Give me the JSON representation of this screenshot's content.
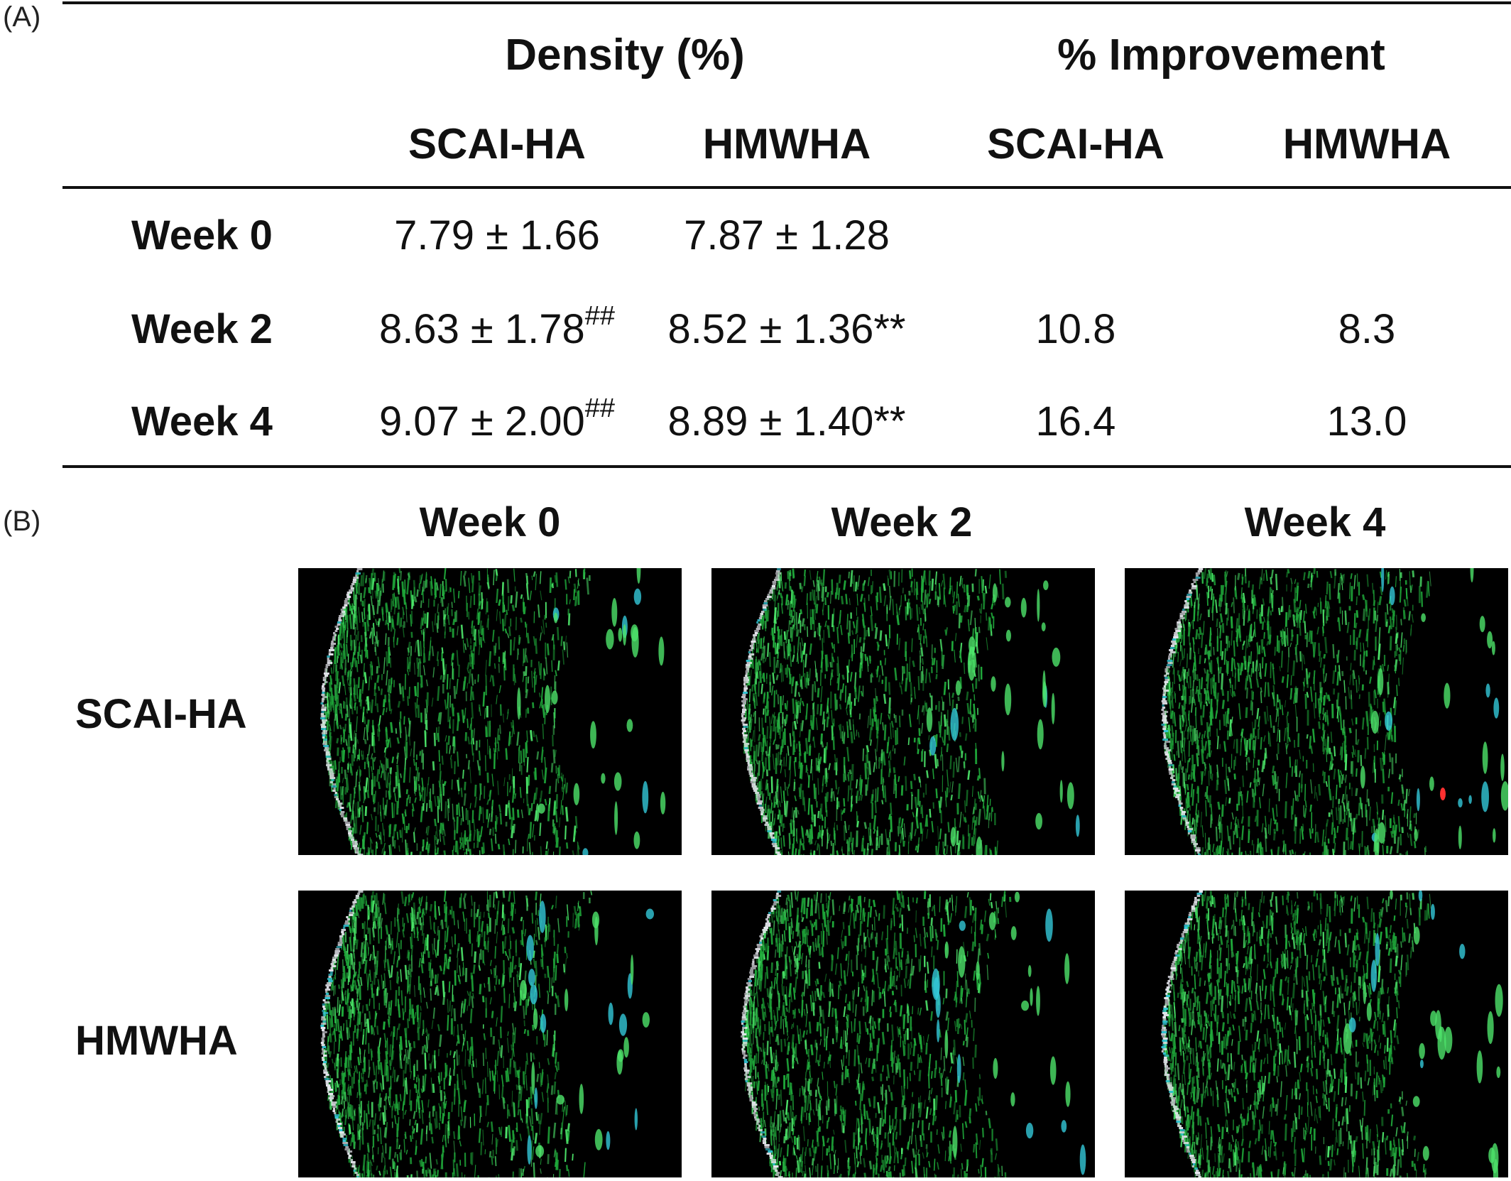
{
  "panel_a": {
    "label": "(A)",
    "group_headers": [
      "Density (%)",
      "% Improvement"
    ],
    "sub_headers": [
      "SCAI-HA",
      "HMWHA",
      "SCAI-HA",
      "HMWHA"
    ],
    "rows": [
      {
        "label": "Week 0",
        "scai_density": "7.79 ± 1.66",
        "scai_sup": "",
        "hmwha_density": "7.87 ± 1.28",
        "scai_impr": "",
        "hmwha_impr": ""
      },
      {
        "label": "Week 2",
        "scai_density": "8.63 ± 1.78",
        "scai_sup": "##",
        "hmwha_density": "8.52 ± 1.36**",
        "scai_impr": "10.8",
        "hmwha_impr": "8.3"
      },
      {
        "label": "Week 4",
        "scai_density": "9.07 ± 2.00",
        "scai_sup": "##",
        "hmwha_density": "8.89 ± 1.40**",
        "scai_impr": "16.4",
        "hmwha_impr": "13.0"
      }
    ]
  },
  "panel_b": {
    "label": "(B)",
    "columns": [
      "Week 0",
      "Week 2",
      "Week 4"
    ],
    "rows": [
      "SCAI-HA",
      "HMWHA"
    ],
    "image_colors": {
      "background": "#000000",
      "tissue": "#1fa83a",
      "tissue_bright": "#4de36a",
      "edge": "#e8e8f0",
      "accent": "#33c8d8",
      "hotspot": "#ff3030"
    }
  }
}
